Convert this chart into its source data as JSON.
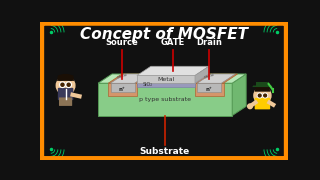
{
  "title": "Concept of MOSFET",
  "title_color": "#FFFFFF",
  "title_fontsize": 11,
  "bg_color": "#111111",
  "border_color": "#FF8C00",
  "circuit_color": "#00CC66",
  "source_label": "Source",
  "gate_label": "GATE",
  "drain_label": "Drain",
  "substrate_label": "Substrate",
  "label_color": "#FFFFFF",
  "label_fontsize": 6,
  "substrate_fontsize": 6.5,
  "wire_color": "#CC0000",
  "substrate_wire_color": "#CC2200",
  "body_top_color": "#B8E8B8",
  "body_front_color": "#88CC88",
  "body_right_color": "#70B870",
  "body_edge": "#559955",
  "metal_contact_color": "#D4A574",
  "metal_contact_edge": "#AA7744",
  "metal_gate_color": "#C8C8C8",
  "metal_gate_edge": "#999999",
  "sio2_color": "#9999BB",
  "sio2_edge": "#7777AA",
  "groove_color": "#B0D8B0",
  "n_region_color": "#D4956A",
  "n_region_edge": "#AA6633"
}
